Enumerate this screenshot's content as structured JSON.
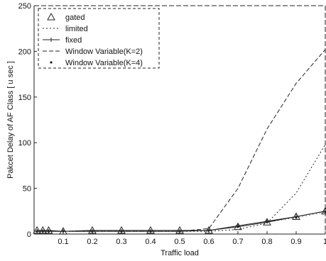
{
  "chart_data": {
    "type": "line",
    "title": "",
    "xlabel": "Traffic load",
    "ylabel": "Pakcet Delay of AF Class [ u sec ]",
    "xlim": [
      0.0,
      1.0
    ],
    "ylim": [
      0,
      250
    ],
    "x_ticks": [
      {
        "value": 0.1,
        "label": "0.1"
      },
      {
        "value": 0.2,
        "label": "0.2"
      },
      {
        "value": 0.3,
        "label": "0.3"
      },
      {
        "value": 0.4,
        "label": "0.4"
      },
      {
        "value": 0.5,
        "label": "0.5"
      },
      {
        "value": 0.6,
        "label": "0.6"
      },
      {
        "value": 0.7,
        "label": "0.7"
      },
      {
        "value": 0.8,
        "label": "0.8"
      },
      {
        "value": 0.9,
        "label": "0.9"
      },
      {
        "value": 1.0,
        "label": "1"
      }
    ],
    "y_ticks": [
      {
        "value": 0,
        "label": "0"
      },
      {
        "value": 50,
        "label": "50"
      },
      {
        "value": 100,
        "label": "100"
      },
      {
        "value": 150,
        "label": "150"
      },
      {
        "value": 200,
        "label": "200"
      },
      {
        "value": 250,
        "label": "250"
      }
    ],
    "grid": false,
    "legend_position": "top-left",
    "series": [
      {
        "name": "gated",
        "marker": "triangle",
        "dash": "none",
        "x": [
          0.01,
          0.03,
          0.05,
          0.1,
          0.2,
          0.3,
          0.4,
          0.5,
          0.6,
          0.7,
          0.8,
          0.9,
          1.0
        ],
        "values": [
          4,
          4,
          4,
          3,
          4,
          4,
          4,
          4,
          4,
          8,
          13,
          19,
          25
        ]
      },
      {
        "name": "limited",
        "marker": "none",
        "dash": "2,3",
        "x": [
          0.01,
          0.03,
          0.05,
          0.1,
          0.2,
          0.3,
          0.4,
          0.5,
          0.6,
          0.7,
          0.8,
          0.9,
          1.0
        ],
        "values": [
          3,
          3,
          3,
          3,
          3,
          3,
          3,
          3,
          3,
          5,
          12,
          45,
          98
        ]
      },
      {
        "name": "fixed",
        "marker": "plus",
        "dash": "none",
        "x": [
          0.01,
          0.03,
          0.05,
          0.1,
          0.2,
          0.3,
          0.4,
          0.5,
          0.6,
          0.7,
          0.8,
          0.9,
          1.0
        ],
        "values": [
          3,
          3,
          3,
          3,
          3,
          3,
          3,
          3,
          4,
          9,
          14,
          19,
          25
        ]
      },
      {
        "name": "Window Variable(K=2)",
        "marker": "none",
        "dash": "6,3",
        "x": [
          0.01,
          0.03,
          0.05,
          0.1,
          0.2,
          0.3,
          0.4,
          0.5,
          0.6,
          0.7,
          0.8,
          0.9,
          1.0
        ],
        "values": [
          3,
          3,
          3,
          3,
          3,
          3,
          3,
          3,
          6,
          50,
          115,
          165,
          202
        ]
      },
      {
        "name": "Window Variable(K=4)",
        "marker": "dot",
        "dash": "1,4",
        "x": [
          0.01,
          0.03,
          0.05,
          0.1,
          0.2,
          0.3,
          0.4,
          0.5,
          0.6,
          0.7,
          0.8,
          0.9,
          1.0
        ],
        "values": [
          3,
          3,
          3,
          3,
          3,
          3,
          3,
          3,
          4,
          8,
          13,
          18,
          24
        ]
      }
    ]
  }
}
